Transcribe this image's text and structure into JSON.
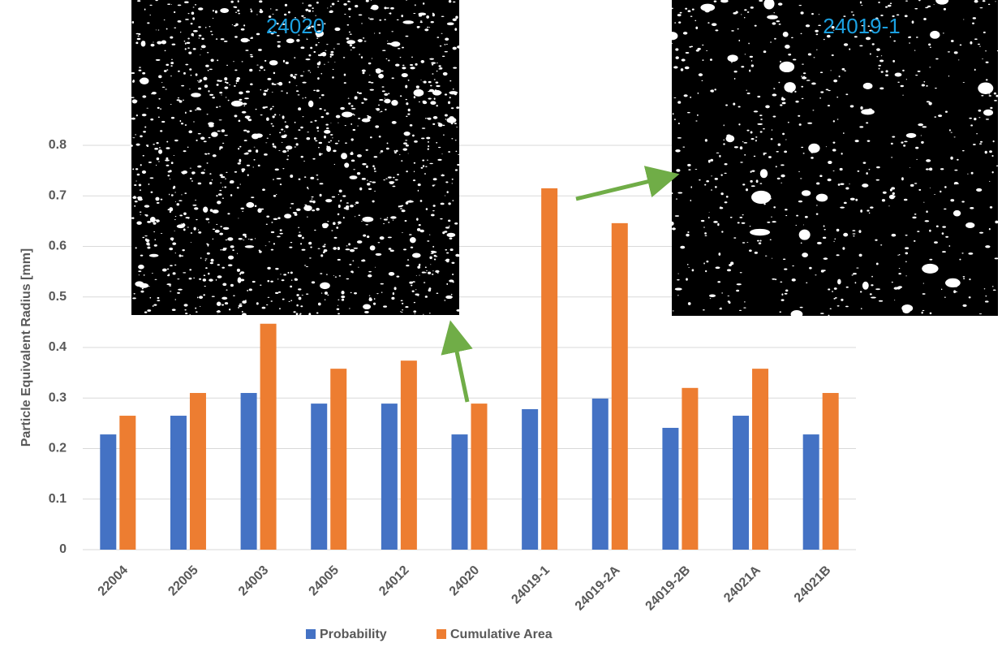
{
  "chart_data": {
    "type": "bar",
    "y_label": "Particle Equivalent Radius [mm]",
    "categories": [
      "22004",
      "22005",
      "24003",
      "24005",
      "24012",
      "24020",
      "24019-1",
      "24019-2A",
      "24019-2B",
      "24021A",
      "24021B"
    ],
    "series": [
      {
        "name": "Probability",
        "color": "#4472c4",
        "values": [
          0.228,
          0.265,
          0.31,
          0.289,
          0.289,
          0.228,
          0.278,
          0.299,
          0.241,
          0.265,
          0.228
        ]
      },
      {
        "name": "Cumulative Area",
        "color": "#ed7d31",
        "values": [
          0.265,
          0.31,
          0.447,
          0.358,
          0.374,
          0.289,
          0.715,
          0.646,
          0.32,
          0.358,
          0.31
        ]
      }
    ],
    "ylim": [
      0,
      0.8
    ],
    "yticks": [
      0,
      0.1,
      0.2,
      0.3,
      0.4,
      0.5,
      0.6,
      0.7,
      0.8
    ],
    "grid": true,
    "legend": "bottom",
    "annotations": [
      "24020",
      "24019-1"
    ]
  }
}
